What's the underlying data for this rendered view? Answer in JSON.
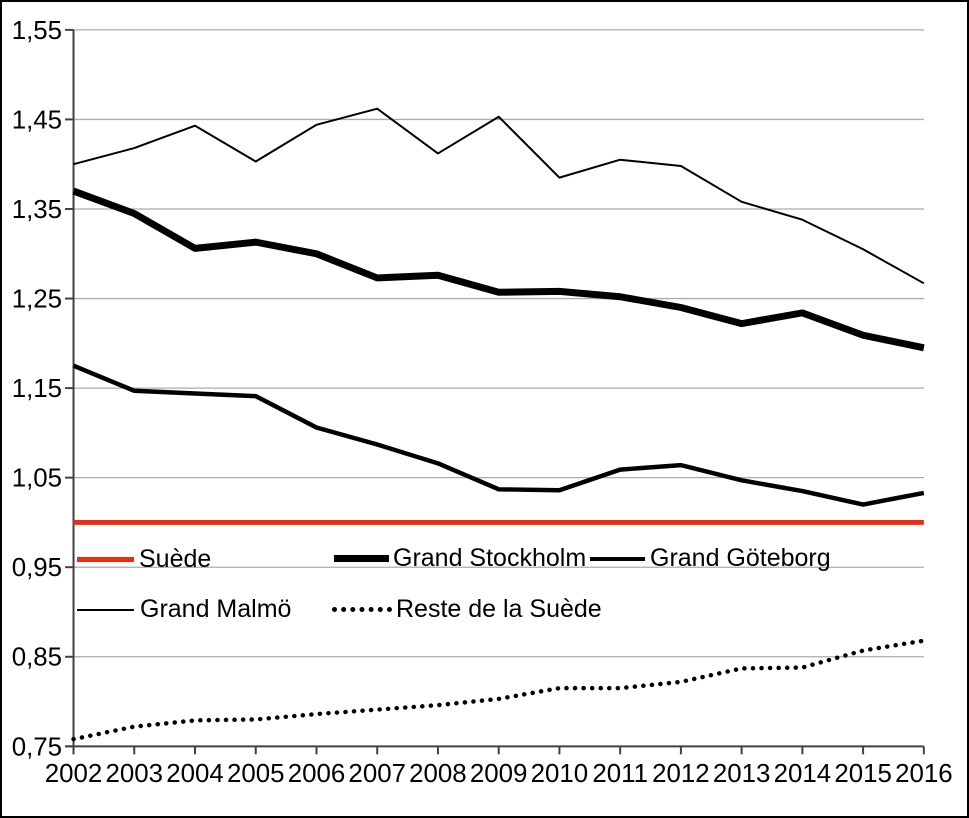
{
  "chart_data": {
    "type": "line",
    "title": "",
    "xlabel": "",
    "ylabel": "",
    "grid": true,
    "legend_position": "inside-bottom-left-two-rows",
    "x_labels": [
      "2002",
      "2003",
      "2004",
      "2005",
      "2006",
      "2007",
      "2008",
      "2009",
      "2010",
      "2011",
      "2012",
      "2013",
      "2014",
      "2015",
      "2016"
    ],
    "y_ticks": [
      0.75,
      0.85,
      0.95,
      1.05,
      1.15,
      1.25,
      1.35,
      1.45,
      1.55
    ],
    "y_tick_labels": [
      "0,75",
      "0,85",
      "0,95",
      "1,05",
      "1,15",
      "1,25",
      "1,35",
      "1,45",
      "1,55"
    ],
    "ylim": [
      0.75,
      1.55
    ],
    "series": [
      {
        "name": "Suède",
        "color": "#ED2D10",
        "line_style": "solid",
        "stroke_width": 5,
        "values": [
          1.0,
          1.0,
          1.0,
          1.0,
          1.0,
          1.0,
          1.0,
          1.0,
          1.0,
          1.0,
          1.0,
          1.0,
          1.0,
          1.0,
          1.0
        ]
      },
      {
        "name": "Grand Stockholm",
        "color": "#000000",
        "line_style": "solid",
        "stroke_width": 7,
        "values": [
          1.37,
          1.345,
          1.306,
          1.313,
          1.3,
          1.273,
          1.276,
          1.257,
          1.258,
          1.252,
          1.24,
          1.222,
          1.234,
          1.209,
          1.195
        ]
      },
      {
        "name": "Grand Göteborg",
        "color": "#000000",
        "line_style": "solid",
        "stroke_width": 4.5,
        "values": [
          1.175,
          1.147,
          1.144,
          1.141,
          1.106,
          1.087,
          1.066,
          1.037,
          1.036,
          1.059,
          1.064,
          1.047,
          1.035,
          1.02,
          1.033
        ]
      },
      {
        "name": "Grand Malmö",
        "color": "#000000",
        "line_style": "solid",
        "stroke_width": 2,
        "values": [
          1.4,
          1.418,
          1.443,
          1.403,
          1.444,
          1.462,
          1.412,
          1.453,
          1.385,
          1.405,
          1.398,
          1.358,
          1.338,
          1.305,
          1.267
        ]
      },
      {
        "name": "Reste de la Suède",
        "color": "#000000",
        "line_style": "dotted",
        "stroke_width": 4.5,
        "values": [
          0.758,
          0.772,
          0.779,
          0.78,
          0.786,
          0.791,
          0.796,
          0.803,
          0.815,
          0.815,
          0.822,
          0.837,
          0.838,
          0.857,
          0.868
        ]
      }
    ],
    "colors": {
      "background": "#FFFFFF",
      "border": "#000000",
      "gridline": "#ACACAC",
      "axis": "#404040",
      "reference_line_red": "#ED2D10"
    }
  }
}
